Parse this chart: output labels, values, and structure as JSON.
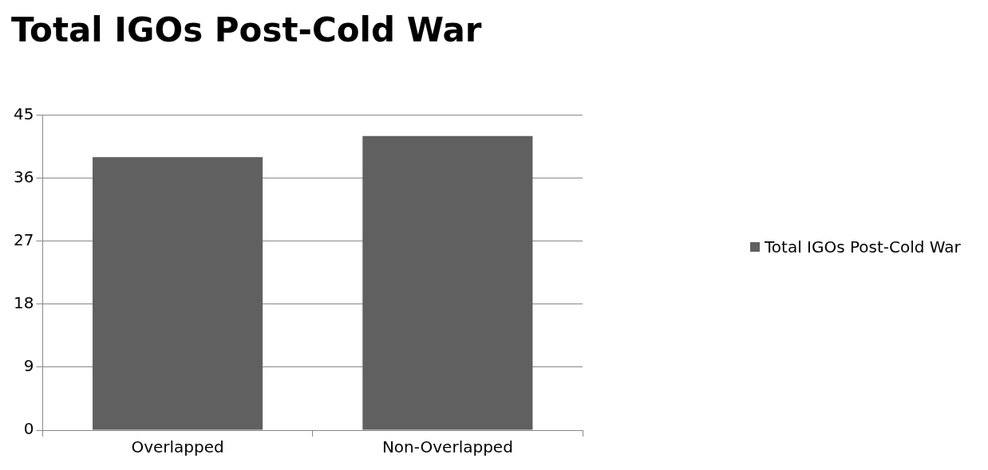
{
  "chart_data": {
    "type": "bar",
    "title": "Total IGOs Post-Cold War",
    "categories": [
      "Overlapped",
      "Non-Overlapped"
    ],
    "series": [
      {
        "name": "Total IGOs Post-Cold War",
        "color": "#606060",
        "values": [
          39,
          42
        ]
      }
    ],
    "ylim": [
      0,
      45
    ],
    "yticks": [
      0,
      9,
      18,
      27,
      36,
      45
    ],
    "grid": "y",
    "legend": "right"
  }
}
